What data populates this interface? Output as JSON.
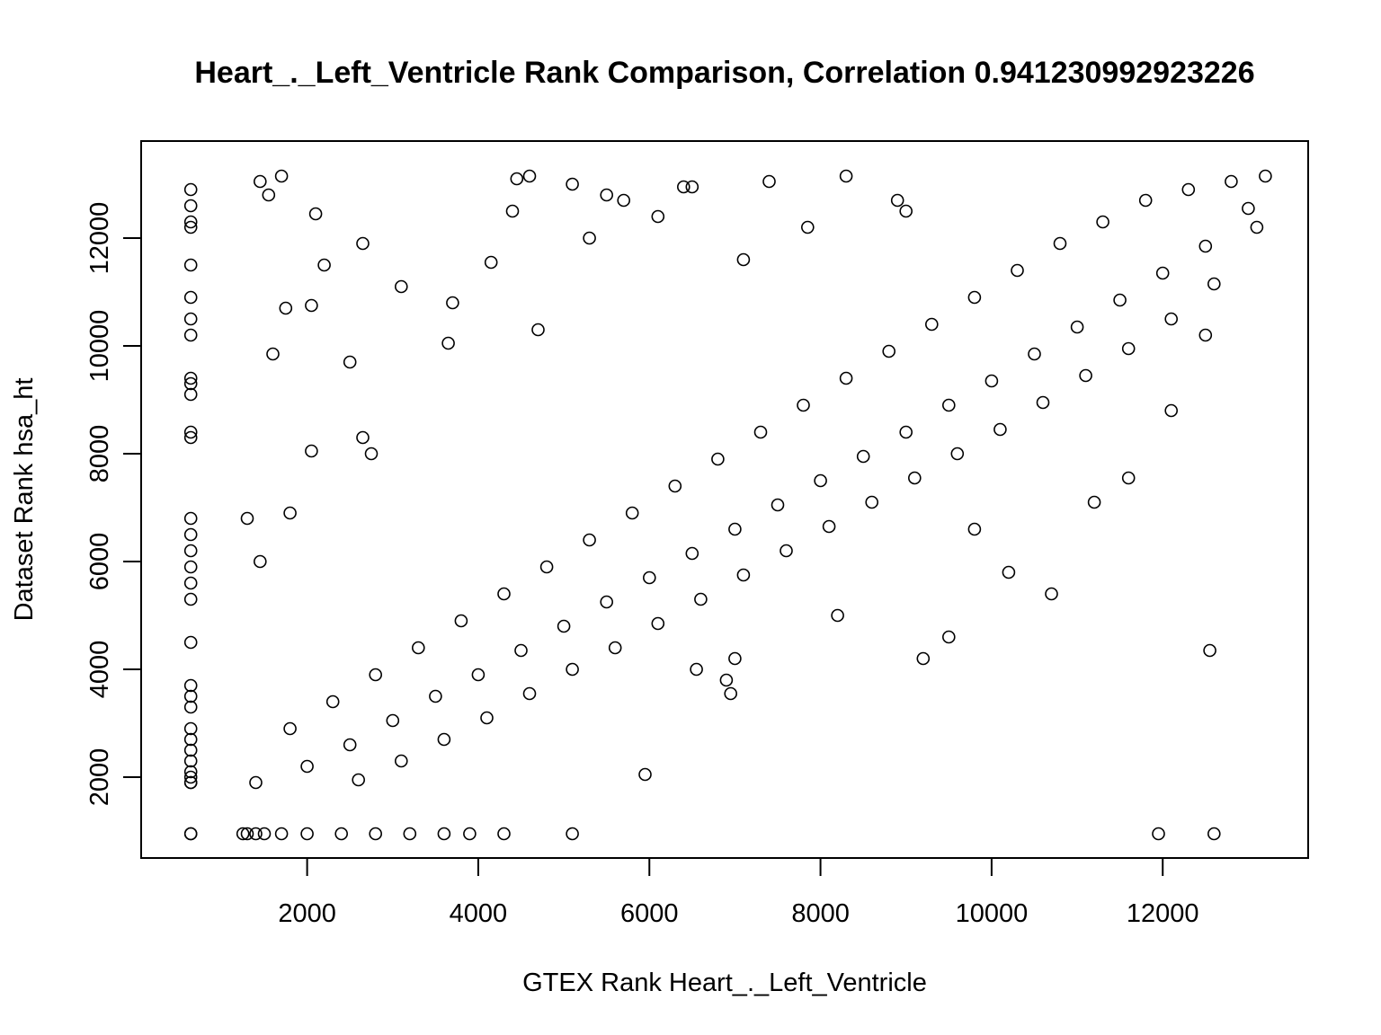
{
  "chart_data": {
    "type": "scatter",
    "title": "Heart_._Left_Ventricle Rank Comparison, Correlation 0.941230992923226",
    "xlabel": "GTEX Rank Heart_._Left_Ventricle",
    "ylabel": "Dataset Rank hsa_ht",
    "xlim": [
      60,
      13700
    ],
    "ylim": [
      500,
      13800
    ],
    "x_ticks": [
      2000,
      4000,
      6000,
      8000,
      10000,
      12000
    ],
    "x_tick_labels": [
      "2000",
      "4000",
      "6000",
      "8000",
      "10000",
      "12000"
    ],
    "y_ticks": [
      2000,
      4000,
      6000,
      8000,
      10000,
      12000
    ],
    "y_tick_labels": [
      "2000",
      "4000",
      "6000",
      "8000",
      "10000",
      "12000"
    ],
    "grid": false,
    "marker": "open-circle",
    "point_color": "#000000",
    "series": [
      {
        "description_points": "representative sample of plotted points (x = GTEX rank, y = dataset rank)",
        "x": [
          640,
          640,
          640,
          640,
          640,
          640,
          640,
          640,
          640,
          640,
          640,
          640,
          640,
          640,
          640,
          640,
          640,
          640,
          640,
          640,
          640,
          640,
          640,
          640,
          640,
          640,
          640,
          640,
          640,
          640,
          640,
          640,
          640,
          1450,
          1700,
          1550,
          2100,
          2200,
          2650,
          3100,
          1750,
          2050,
          1600,
          2500,
          2650,
          2750,
          1300,
          1800,
          1450,
          2050,
          4450,
          4600,
          4400,
          5100,
          5300,
          5500,
          5700,
          6100,
          6400,
          6500,
          4150,
          3700,
          3650,
          4700,
          7400,
          7850,
          8300,
          8900,
          9000,
          7100,
          6900,
          5950,
          6950,
          6550,
          10700,
          11950,
          12550,
          12600,
          5100,
          1250,
          1300,
          1400,
          1500,
          1700,
          2000,
          2400,
          2800,
          3200,
          3600,
          3900,
          4300,
          1400,
          2000,
          2500,
          3000,
          3500,
          4000,
          4500,
          5000,
          5500,
          6000,
          6500,
          7000,
          7500,
          8000,
          8500,
          9000,
          9500,
          10000,
          10500,
          11000,
          11500,
          12000,
          12500,
          13000,
          13200,
          1800,
          2300,
          2800,
          3300,
          3800,
          4300,
          4800,
          5300,
          5800,
          6300,
          6800,
          7300,
          7800,
          8300,
          8800,
          9300,
          9800,
          10300,
          10800,
          11300,
          11800,
          12300,
          12800,
          2600,
          3100,
          3600,
          4100,
          4600,
          5100,
          5600,
          6100,
          6600,
          7100,
          7600,
          8100,
          8600,
          9100,
          9600,
          10100,
          10600,
          11100,
          11600,
          12100,
          12600,
          13100,
          9200,
          9500,
          10200,
          11200,
          11600,
          12100,
          12500,
          9800,
          8200,
          7000
        ],
        "y": [
          950,
          950,
          1900,
          2000,
          2100,
          2300,
          2500,
          2700,
          2900,
          3300,
          3500,
          3700,
          4500,
          5300,
          5600,
          5900,
          6200,
          6500,
          6800,
          8300,
          8400,
          9100,
          9300,
          9400,
          10200,
          10500,
          10900,
          11500,
          12200,
          12300,
          12600,
          12900,
          1900,
          13050,
          13150,
          12800,
          12450,
          11500,
          11900,
          11100,
          10700,
          10750,
          9850,
          9700,
          8300,
          8000,
          6800,
          6900,
          6000,
          8050,
          13100,
          13150,
          12500,
          13000,
          12000,
          12800,
          12700,
          12400,
          12950,
          12950,
          11550,
          10800,
          10050,
          10300,
          13050,
          12200,
          13150,
          12700,
          12500,
          11600,
          3800,
          2050,
          3550,
          4000,
          5400,
          950,
          4350,
          950,
          950,
          950,
          950,
          950,
          950,
          950,
          950,
          950,
          950,
          950,
          950,
          950,
          950,
          1900,
          2200,
          2600,
          3050,
          3500,
          3900,
          4350,
          4800,
          5250,
          5700,
          6150,
          6600,
          7050,
          7500,
          7950,
          8400,
          8900,
          9350,
          9850,
          10350,
          10850,
          11350,
          11850,
          12550,
          13150,
          2900,
          3400,
          3900,
          4400,
          4900,
          5400,
          5900,
          6400,
          6900,
          7400,
          7900,
          8400,
          8900,
          9400,
          9900,
          10400,
          10900,
          11400,
          11900,
          12300,
          12700,
          12900,
          13050,
          1950,
          2300,
          2700,
          3100,
          3550,
          4000,
          4400,
          4850,
          5300,
          5750,
          6200,
          6650,
          7100,
          7550,
          8000,
          8450,
          8950,
          9450,
          9950,
          10500,
          11150,
          12200,
          4200,
          4600,
          5800,
          7100,
          7550,
          8800,
          10200,
          6600,
          5000,
          4200
        ]
      }
    ]
  }
}
